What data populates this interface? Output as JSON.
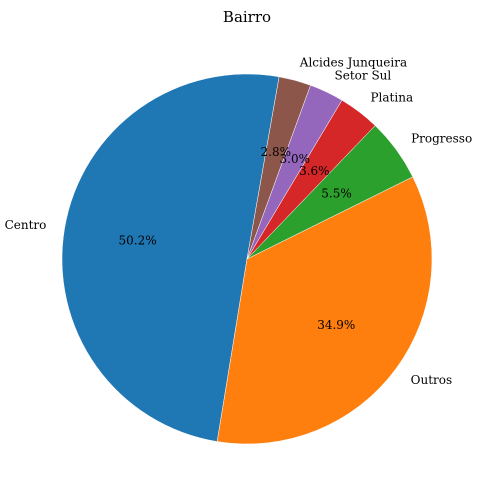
{
  "chart_data": {
    "type": "pie",
    "title": "Bairro",
    "slices": [
      {
        "label": "Centro",
        "value": 50.2,
        "pct_label": "50.2%",
        "color": "#1f77b4"
      },
      {
        "label": "Outros",
        "value": 34.9,
        "pct_label": "34.9%",
        "color": "#ff7f0e"
      },
      {
        "label": "Progresso",
        "value": 5.5,
        "pct_label": "5.5%",
        "color": "#2ca02c"
      },
      {
        "label": "Platina",
        "value": 3.6,
        "pct_label": "3.6%",
        "color": "#d62728"
      },
      {
        "label": "Setor Sul",
        "value": 3.0,
        "pct_label": "3.0%",
        "color": "#9467bd"
      },
      {
        "label": "Alcides Junqueira",
        "value": 2.8,
        "pct_label": "2.8%",
        "color": "#8c564b"
      }
    ],
    "start_angle_deg": 80,
    "direction": "counterclockwise"
  }
}
